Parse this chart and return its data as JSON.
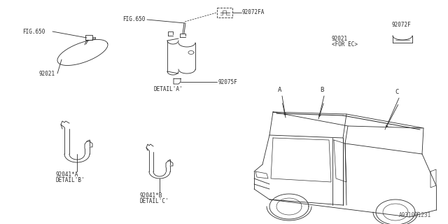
{
  "bg_color": "#ffffff",
  "line_color": "#2a2a2a",
  "text_color": "#2a2a2a",
  "watermark": "A931001231",
  "labels": {
    "fig650_left": "FIG.650",
    "fig650_right": "FIG.650",
    "part_92021_left": "92021",
    "part_92021_right": "92021\n<FOR EC>",
    "part_92072FA": "92072FA",
    "part_92072F": "92072F",
    "part_92075F": "92075F",
    "detail_a": "DETAIL'A'",
    "part_92041A": "92041*A",
    "detail_b": "DETAIL'B'",
    "part_92041B": "92041*B",
    "detail_c": "DETAIL'C'",
    "arrow_a": "A",
    "arrow_b": "B",
    "arrow_c": "C"
  },
  "font_size": 5.5,
  "lw": 0.6
}
